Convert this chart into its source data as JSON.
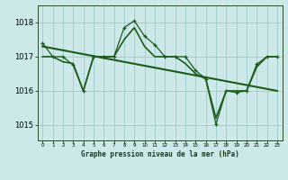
{
  "title": "Graphe pression niveau de la mer (hPa)",
  "bg_color": "#cce8e8",
  "grid_color": "#99cccc",
  "line_color": "#1a5c1a",
  "hours": [
    0,
    1,
    2,
    3,
    4,
    5,
    6,
    7,
    8,
    9,
    10,
    11,
    12,
    13,
    14,
    15,
    16,
    17,
    18,
    19,
    20,
    21,
    22,
    23
  ],
  "pressure_main": [
    1017.4,
    1017.0,
    1017.0,
    1016.75,
    1016.0,
    1017.0,
    1017.0,
    1017.0,
    1017.85,
    1018.05,
    1017.6,
    1017.35,
    1017.0,
    1017.0,
    1017.0,
    1016.6,
    1016.35,
    1015.02,
    1016.0,
    1015.95,
    1016.0,
    1016.78,
    1017.0,
    1017.0
  ],
  "pressure_smooth": [
    1017.0,
    1017.0,
    1016.85,
    1016.8,
    1016.0,
    1017.0,
    1017.0,
    1017.0,
    1017.5,
    1017.85,
    1017.3,
    1017.0,
    1017.0,
    1017.0,
    1016.8,
    1016.5,
    1016.35,
    1015.2,
    1016.0,
    1016.0,
    1016.0,
    1016.7,
    1017.0,
    1017.0
  ],
  "trend_x": [
    0,
    23
  ],
  "trend_y": [
    1017.3,
    1016.0
  ],
  "ylim": [
    1014.55,
    1018.5
  ],
  "yticks": [
    1015,
    1016,
    1017,
    1018
  ],
  "xticks": [
    0,
    1,
    2,
    3,
    4,
    5,
    6,
    7,
    8,
    9,
    10,
    11,
    12,
    13,
    14,
    15,
    16,
    17,
    18,
    19,
    20,
    21,
    22,
    23
  ]
}
